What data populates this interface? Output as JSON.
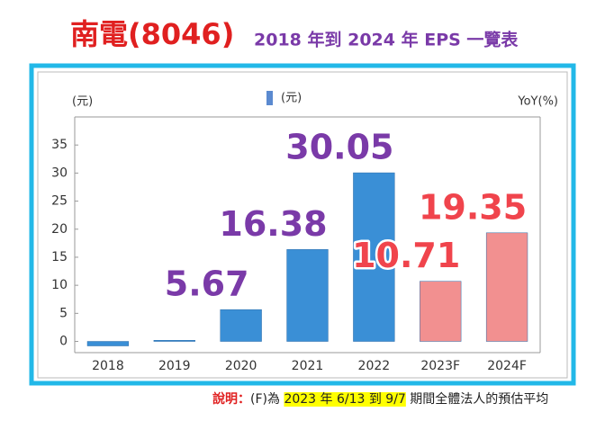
{
  "chart_data": {
    "type": "bar",
    "title": "南電(8046)",
    "subtitle": "2018 年到 2024 年 EPS 一覽表",
    "y_label": "(元)",
    "y2_label": "YoY(%)",
    "categories": [
      "2018",
      "2019",
      "2020",
      "2021",
      "2022",
      "2023F",
      "2024F"
    ],
    "series": [
      {
        "name": "(元)",
        "color": "#5b8ad0",
        "colors": [
          "#3a8fd6",
          "#3a8fd6",
          "#3a8fd6",
          "#3a8fd6",
          "#3a8fd6",
          "#f29090",
          "#f29090"
        ],
        "label_colors": [
          "#7a3aa8",
          "#7a3aa8",
          "#7a3aa8",
          "#7a3aa8",
          "#7a3aa8",
          "#f0444c",
          "#f0444c"
        ],
        "values": [
          -0.8,
          0.2,
          5.67,
          16.38,
          30.05,
          10.71,
          19.35
        ],
        "value_labels": [
          null,
          null,
          "5.67",
          "16.38",
          "30.05",
          "10.71",
          "19.35"
        ]
      }
    ],
    "ylim": [
      -2,
      40
    ],
    "yticks": [
      0,
      5,
      10,
      15,
      20,
      25,
      30,
      35
    ],
    "grid": false,
    "note": [
      "說明：",
      "(F)為 ",
      "2023 年 6/13 到 9/7",
      " 期間全體法人的預估平均"
    ]
  }
}
